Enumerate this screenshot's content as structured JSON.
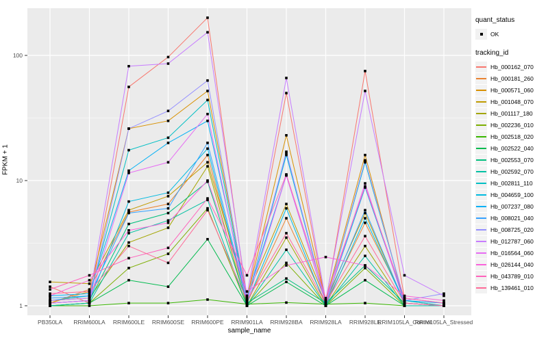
{
  "figure": {
    "y_axis": {
      "title": "FPKM + 1",
      "tick_labels": [
        "1",
        "10",
        "100"
      ]
    },
    "x_axis": {
      "title": "sample_name"
    },
    "legend": {
      "quant_status": {
        "title": "quant_status",
        "items": [
          {
            "label": "OK",
            "marker": "black-point"
          }
        ]
      },
      "tracking": {
        "title": "tracking_id"
      }
    },
    "colors": {
      "panel_background": "#EBEBEB",
      "grid_major": "#FFFFFF",
      "grid_minor": "rgba(255,255,255,0.65)",
      "tick_label": "#4D4D4D",
      "tick_mark": "#333333",
      "point": "#000000",
      "legend_key_background": "#F2F2F2"
    }
  },
  "chart_data": {
    "type": "line",
    "title": "",
    "xlabel": "sample_name",
    "ylabel": "FPKM + 1",
    "log_y": true,
    "ylim": [
      0.85,
      240
    ],
    "y_ticks": [
      1,
      10,
      100
    ],
    "grid": true,
    "legend_position": "right",
    "point_marker": "small black square (quant_status = OK)",
    "categories": [
      "PB350LA",
      "RRIM600LA",
      "RRIM600LE",
      "RRIM600SE",
      "RRIM600PE",
      "RRIM901LA",
      "RRIM928BA",
      "RRIM928LA",
      "RRIM928LE",
      "RRIM105LA_Control",
      "RRIM105LA_Stressed"
    ],
    "series": [
      {
        "name": "Hb_000162_070",
        "color": "#F8766D",
        "values": [
          1.42,
          1.05,
          56,
          97,
          200,
          1.1,
          50,
          1.05,
          75,
          1.15,
          1.05
        ]
      },
      {
        "name": "Hb_000181_260",
        "color": "#EA8331",
        "values": [
          1.05,
          1.35,
          5.6,
          6.5,
          16,
          1.05,
          5.0,
          1.05,
          4.6,
          1.1,
          1.0
        ]
      },
      {
        "name": "Hb_000571_060",
        "color": "#D89000",
        "values": [
          1.05,
          1.3,
          26,
          30,
          52,
          1.15,
          23,
          1.1,
          16,
          1.05,
          1.0
        ]
      },
      {
        "name": "Hb_001048_070",
        "color": "#C09B00",
        "values": [
          1.55,
          1.5,
          5.8,
          7.5,
          14,
          1.2,
          6.5,
          1.1,
          5.5,
          1.05,
          1.0
        ]
      },
      {
        "name": "Hb_001117_180",
        "color": "#A3A500",
        "values": [
          1.1,
          1.15,
          3.2,
          4.2,
          13,
          1.0,
          3.5,
          1.0,
          3.0,
          1.0,
          1.0
        ]
      },
      {
        "name": "Hb_002236_010",
        "color": "#7CAE00",
        "values": [
          1.0,
          1.05,
          2.0,
          2.6,
          6.0,
          1.0,
          2.2,
          1.0,
          2.0,
          1.0,
          1.0
        ]
      },
      {
        "name": "Hb_002518_020",
        "color": "#39B600",
        "values": [
          1.0,
          1.0,
          1.05,
          1.05,
          1.12,
          1.03,
          1.06,
          1.03,
          1.05,
          1.0,
          1.0
        ]
      },
      {
        "name": "Hb_002522_040",
        "color": "#00BB4E",
        "values": [
          1.0,
          1.05,
          1.6,
          1.42,
          3.4,
          1.0,
          1.55,
          1.0,
          1.6,
          1.0,
          1.0
        ]
      },
      {
        "name": "Hb_002553_070",
        "color": "#00BF7D",
        "values": [
          1.05,
          1.1,
          4.5,
          5.5,
          9.8,
          1.05,
          1.65,
          1.05,
          2.1,
          1.05,
          1.0
        ]
      },
      {
        "name": "Hb_002592_070",
        "color": "#00C1A3",
        "values": [
          1.0,
          1.05,
          3.8,
          4.8,
          7.0,
          1.0,
          2.8,
          1.0,
          2.5,
          1.0,
          1.0
        ]
      },
      {
        "name": "Hb_002811_110",
        "color": "#00BFC4",
        "values": [
          1.1,
          1.2,
          17.5,
          22,
          44,
          1.1,
          16,
          1.05,
          14,
          1.1,
          1.0
        ]
      },
      {
        "name": "Hb_004659_100",
        "color": "#00BAE0",
        "values": [
          1.05,
          1.1,
          6.8,
          8.0,
          18,
          1.05,
          6.0,
          1.0,
          5.0,
          1.05,
          1.0
        ]
      },
      {
        "name": "Hb_007237_080",
        "color": "#00B0F6",
        "values": [
          1.2,
          1.25,
          12,
          20,
          30,
          1.15,
          11,
          1.05,
          8.8,
          1.1,
          1.05
        ]
      },
      {
        "name": "Hb_008021_040",
        "color": "#35A2FF",
        "values": [
          1.15,
          1.2,
          5.5,
          6.0,
          20,
          1.1,
          16.5,
          1.05,
          5.8,
          1.05,
          1.0
        ]
      },
      {
        "name": "Hb_008725_020",
        "color": "#9590FF",
        "values": [
          1.05,
          1.1,
          26,
          36,
          63,
          1.1,
          17,
          1.05,
          14.5,
          1.1,
          1.25
        ]
      },
      {
        "name": "Hb_012787_060",
        "color": "#C77CFF",
        "values": [
          1.1,
          1.15,
          82,
          86,
          153,
          1.2,
          66,
          1.1,
          52,
          1.75,
          1.2
        ]
      },
      {
        "name": "Hb_016564_060",
        "color": "#E76BF3",
        "values": [
          1.05,
          1.1,
          11.5,
          14,
          34,
          1.05,
          11,
          1.05,
          9.5,
          1.05,
          1.0
        ]
      },
      {
        "name": "Hb_026144_040",
        "color": "#FA62DB",
        "values": [
          1.2,
          1.6,
          4.0,
          4.6,
          10,
          1.3,
          2.1,
          2.45,
          2.1,
          1.2,
          1.1
        ]
      },
      {
        "name": "Hb_043789_010",
        "color": "#FF62BC",
        "values": [
          1.35,
          1.75,
          2.4,
          2.9,
          7.2,
          1.75,
          11.2,
          1.15,
          9.0,
          1.15,
          1.05
        ]
      },
      {
        "name": "Hb_139461_010",
        "color": "#FF6A98",
        "values": [
          1.25,
          1.3,
          3.0,
          2.2,
          5.8,
          1.1,
          3.8,
          1.05,
          3.6,
          1.05,
          1.0
        ]
      }
    ]
  }
}
